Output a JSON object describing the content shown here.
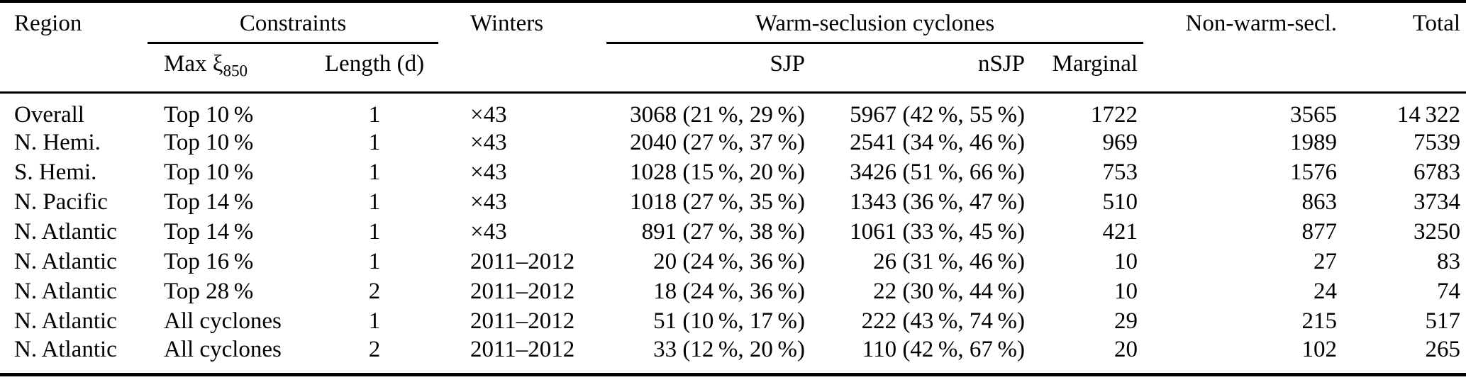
{
  "colors": {
    "text": "#000000",
    "background": "#ffffff",
    "rule": "#000000"
  },
  "table": {
    "headers": {
      "region": "Region",
      "constraints": "Constraints",
      "winters": "Winters",
      "warm_seclusion": "Warm-seclusion cyclones",
      "non_warm": "Non-warm-secl.",
      "total": "Total",
      "max_xi_main": "Max ξ",
      "max_xi_sub": "850",
      "length": "Length (d)",
      "sjp": "SJP",
      "nsjp": "nSJP",
      "marginal": "Marginal"
    },
    "columns": [
      {
        "id": "region",
        "align": "left"
      },
      {
        "id": "max-xi",
        "align": "left"
      },
      {
        "id": "length",
        "align": "center"
      },
      {
        "id": "winters",
        "align": "left"
      },
      {
        "id": "sjp",
        "align": "right"
      },
      {
        "id": "nsjp",
        "align": "right"
      },
      {
        "id": "marginal",
        "align": "right"
      },
      {
        "id": "non-warm",
        "align": "right"
      },
      {
        "id": "total",
        "align": "right"
      }
    ],
    "rows": [
      [
        "Overall",
        "Top 10 %",
        "1",
        "×43",
        "3068 (21 %, 29 %)",
        "5967 (42 %, 55 %)",
        "1722",
        "3565",
        "14 322"
      ],
      [
        "N. Hemi.",
        "Top 10 %",
        "1",
        "×43",
        "2040 (27 %, 37 %)",
        "2541 (34 %, 46 %)",
        "969",
        "1989",
        "7539"
      ],
      [
        "S. Hemi.",
        "Top 10 %",
        "1",
        "×43",
        "1028 (15 %, 20 %)",
        "3426 (51 %, 66 %)",
        "753",
        "1576",
        "6783"
      ],
      [
        "N. Pacific",
        "Top 14 %",
        "1",
        "×43",
        "1018 (27 %, 35 %)",
        "1343 (36 %, 47 %)",
        "510",
        "863",
        "3734"
      ],
      [
        "N. Atlantic",
        "Top 14 %",
        "1",
        "×43",
        "891 (27 %, 38 %)",
        "1061 (33 %, 45 %)",
        "421",
        "877",
        "3250"
      ],
      [
        "N. Atlantic",
        "Top 16 %",
        "1",
        "2011–2012",
        "20 (24 %, 36 %)",
        "26 (31 %, 46 %)",
        "10",
        "27",
        "83"
      ],
      [
        "N. Atlantic",
        "Top 28 %",
        "2",
        "2011–2012",
        "18 (24 %, 36 %)",
        "22 (30 %, 44 %)",
        "10",
        "24",
        "74"
      ],
      [
        "N. Atlantic",
        "All cyclones",
        "1",
        "2011–2012",
        "51 (10 %, 17 %)",
        "222 (43 %, 74 %)",
        "29",
        "215",
        "517"
      ],
      [
        "N. Atlantic",
        "All cyclones",
        "2",
        "2011–2012",
        "33 (12 %, 20 %)",
        "110 (42 %, 67 %)",
        "20",
        "102",
        "265"
      ]
    ]
  }
}
